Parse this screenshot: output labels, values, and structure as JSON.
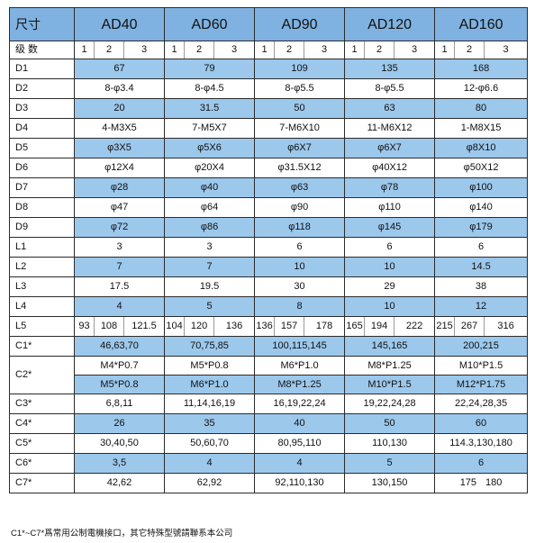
{
  "header": {
    "label": "尺寸",
    "models": [
      "AD40",
      "AD60",
      "AD90",
      "AD120",
      "AD160"
    ]
  },
  "levels": {
    "label": "级 数",
    "values": [
      "1",
      "2",
      "3"
    ]
  },
  "rows": {
    "D1": {
      "label": "D1",
      "v": [
        "67",
        "79",
        "109",
        "135",
        "168"
      ]
    },
    "D2": {
      "label": "D2",
      "v": [
        "8-φ3.4",
        "8-φ4.5",
        "8-φ5.5",
        "8-φ5.5",
        "12-φ6.6"
      ]
    },
    "D3": {
      "label": "D3",
      "v": [
        "20",
        "31.5",
        "50",
        "63",
        "80"
      ]
    },
    "D4": {
      "label": "D4",
      "v": [
        "4-M3X5",
        "7-M5X7",
        "7-M6X10",
        "11-M6X12",
        "1-M8X15"
      ]
    },
    "D5": {
      "label": "D5",
      "v": [
        "φ3X5",
        "φ5X6",
        "φ6X7",
        "φ6X7",
        "φ8X10"
      ]
    },
    "D6": {
      "label": "D6",
      "v": [
        "φ12X4",
        "φ20X4",
        "φ31.5X12",
        "φ40X12",
        "φ50X12"
      ]
    },
    "D7": {
      "label": "D7",
      "v": [
        "φ28",
        "φ40",
        "φ63",
        "φ78",
        "φ100"
      ]
    },
    "D8": {
      "label": "D8",
      "v": [
        "φ47",
        "φ64",
        "φ90",
        "φ110",
        "φ140"
      ]
    },
    "D9": {
      "label": "D9",
      "v": [
        "φ72",
        "φ86",
        "φ118",
        "φ145",
        "φ179"
      ]
    },
    "L1": {
      "label": "L1",
      "v": [
        "3",
        "3",
        "6",
        "6",
        "6"
      ]
    },
    "L2": {
      "label": "L2",
      "v": [
        "7",
        "7",
        "10",
        "10",
        "14.5"
      ]
    },
    "L3": {
      "label": "L3",
      "v": [
        "17.5",
        "19.5",
        "30",
        "29",
        "38"
      ]
    },
    "L4": {
      "label": "L4",
      "v": [
        "4",
        "5",
        "8",
        "10",
        "12"
      ]
    },
    "L5": {
      "label": "L5",
      "v": [
        [
          "93",
          "108",
          "121.5"
        ],
        [
          "104",
          "120",
          "136"
        ],
        [
          "136",
          "157",
          "178"
        ],
        [
          "165",
          "194",
          "222"
        ],
        [
          "215",
          "267",
          "316"
        ]
      ]
    },
    "C1": {
      "label": "C1*",
      "v": [
        "46,63,70",
        "70,75,85",
        "100,115,145",
        "145,165",
        "200,215"
      ]
    },
    "C2": {
      "label": "C2*",
      "a": [
        "M4*P0.7",
        "M5*P0.8",
        "M6*P1.0",
        "M8*P1.25",
        "M10*P1.5"
      ],
      "b": [
        "M5*P0.8",
        "M6*P1.0",
        "M8*P1.25",
        "M10*P1.5",
        "M12*P1.75"
      ]
    },
    "C3": {
      "label": "C3*",
      "v": [
        "6,8,11",
        "11,14,16,19",
        "16,19,22,24",
        "19,22,24,28",
        "22,24,28,35"
      ]
    },
    "C4": {
      "label": "C4*",
      "v": [
        "26",
        "35",
        "40",
        "50",
        "60"
      ]
    },
    "C5": {
      "label": "C5*",
      "v": [
        "30,40,50",
        "50,60,70",
        "80,95,110",
        "110,130",
        "114.3,130,180"
      ]
    },
    "C6": {
      "label": "C6*",
      "v": [
        "3,5",
        "4",
        "4",
        "5",
        "6"
      ]
    },
    "C7": {
      "label": "C7*",
      "v": [
        "42,62",
        "62,92",
        "92,110,130",
        "130,150"
      ],
      "last": [
        "175",
        "180"
      ]
    }
  },
  "footnote": "C1*~C7*爲常用公制電機接口，其它特殊型號請聯系本公司",
  "colors": {
    "header_blue": "#7fb2e0",
    "row_blue": "#9cc8ec",
    "border": "#2b2b2b"
  }
}
